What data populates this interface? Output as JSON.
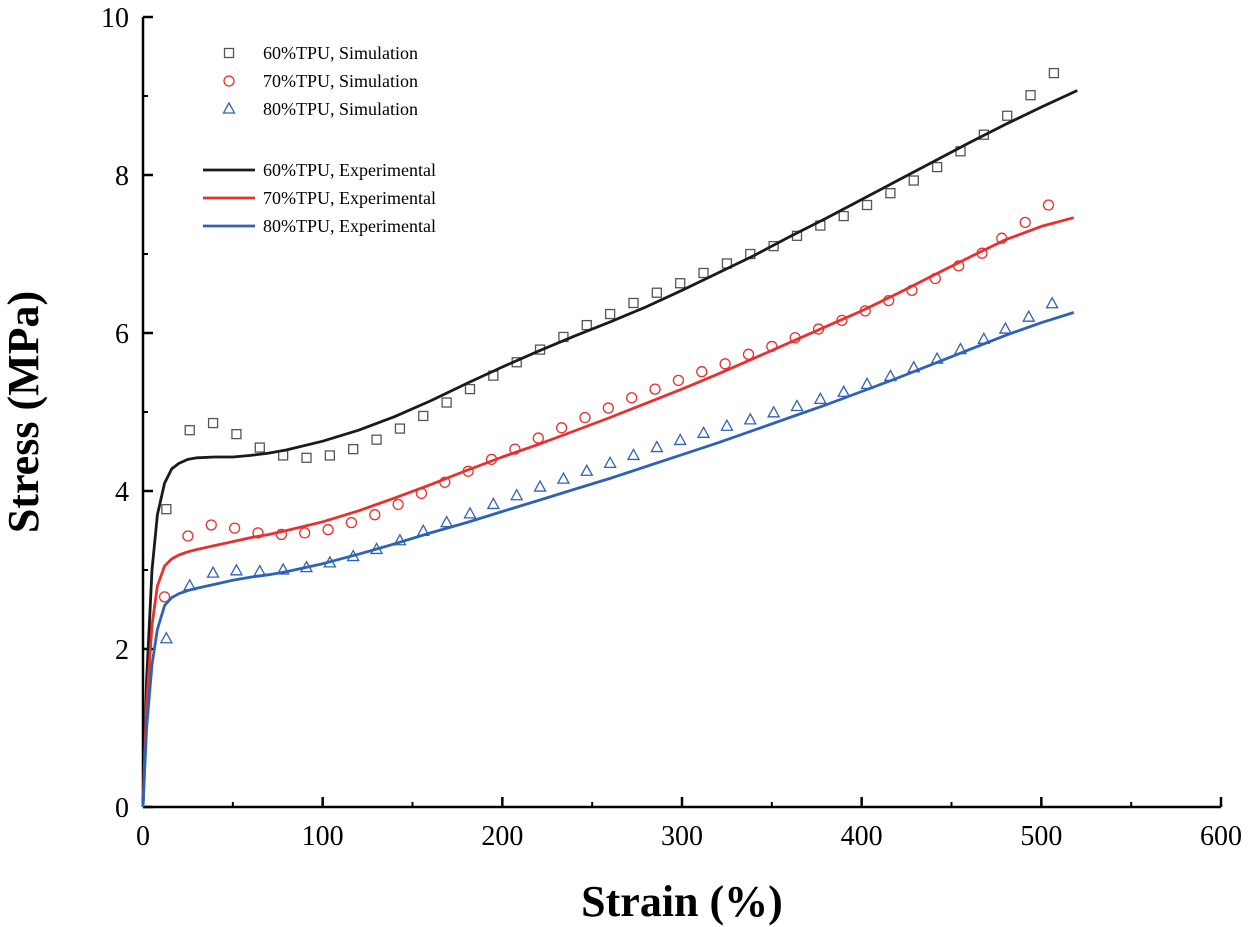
{
  "chart_data": {
    "type": "line",
    "title": "",
    "xlabel": "Strain (%)",
    "ylabel": "Stress (MPa)",
    "xlim": [
      0,
      600
    ],
    "ylim": [
      0,
      10
    ],
    "xticks": [
      0,
      100,
      200,
      300,
      400,
      500,
      600
    ],
    "yticks": [
      0,
      2,
      4,
      6,
      8,
      10
    ],
    "grid": false,
    "legend_position": "top-left",
    "series": [
      {
        "name": "60%TPU, Simulation",
        "kind": "scatter",
        "marker": "square",
        "color": "#555555",
        "x": [
          13,
          26,
          39,
          52,
          65,
          78,
          91,
          104,
          117,
          130,
          143,
          156,
          169,
          182,
          195,
          208,
          221,
          234,
          247,
          260,
          273,
          286,
          299,
          312,
          325,
          338,
          351,
          364,
          377,
          390,
          403,
          416,
          429,
          442,
          455,
          468,
          481,
          494,
          507
        ],
        "y": [
          3.77,
          4.77,
          4.86,
          4.72,
          4.55,
          4.45,
          4.42,
          4.45,
          4.53,
          4.65,
          4.79,
          4.95,
          5.12,
          5.29,
          5.46,
          5.63,
          5.79,
          5.95,
          6.1,
          6.24,
          6.38,
          6.51,
          6.63,
          6.76,
          6.88,
          7.0,
          7.1,
          7.23,
          7.36,
          7.48,
          7.62,
          7.77,
          7.93,
          8.1,
          8.3,
          8.51,
          8.75,
          9.01,
          9.29
        ]
      },
      {
        "name": "70%TPU, Simulation",
        "kind": "scatter",
        "marker": "circle",
        "color": "#e8302e",
        "x": [
          12,
          25,
          38,
          51,
          64,
          77,
          90,
          103,
          116,
          129,
          142,
          155,
          168,
          181,
          194,
          207,
          220,
          233,
          246,
          259,
          272,
          285,
          298,
          311,
          324,
          337,
          350,
          363,
          376,
          389,
          402,
          415,
          428,
          441,
          454,
          467,
          478,
          491,
          504
        ],
        "y": [
          2.66,
          3.43,
          3.57,
          3.53,
          3.47,
          3.45,
          3.47,
          3.51,
          3.6,
          3.7,
          3.83,
          3.97,
          4.11,
          4.25,
          4.4,
          4.53,
          4.67,
          4.8,
          4.93,
          5.05,
          5.18,
          5.29,
          5.4,
          5.51,
          5.61,
          5.73,
          5.83,
          5.94,
          6.05,
          6.16,
          6.28,
          6.41,
          6.54,
          6.69,
          6.85,
          7.01,
          7.2,
          7.4,
          7.62
        ]
      },
      {
        "name": "80%TPU, Simulation",
        "kind": "scatter",
        "marker": "triangle",
        "color": "#2e62b6",
        "x": [
          13,
          26,
          39,
          52,
          65,
          78,
          91,
          104,
          117,
          130,
          143,
          156,
          169,
          182,
          195,
          208,
          221,
          234,
          247,
          260,
          273,
          286,
          299,
          312,
          325,
          338,
          351,
          364,
          377,
          390,
          403,
          416,
          429,
          442,
          455,
          468,
          480,
          493,
          506
        ],
        "y": [
          2.13,
          2.8,
          2.96,
          2.99,
          2.98,
          3.0,
          3.03,
          3.09,
          3.17,
          3.26,
          3.37,
          3.49,
          3.6,
          3.71,
          3.83,
          3.94,
          4.05,
          4.15,
          4.25,
          4.35,
          4.45,
          4.55,
          4.64,
          4.73,
          4.82,
          4.9,
          4.99,
          5.07,
          5.16,
          5.25,
          5.35,
          5.45,
          5.56,
          5.67,
          5.79,
          5.92,
          6.05,
          6.2,
          6.37
        ]
      },
      {
        "name": "60%TPU, Experimental",
        "kind": "line",
        "color": "#1a1a1a",
        "x": [
          0,
          2,
          5,
          8,
          12,
          16,
          20,
          25,
          30,
          40,
          50,
          60,
          70,
          80,
          100,
          120,
          140,
          160,
          180,
          200,
          220,
          240,
          260,
          280,
          300,
          320,
          340,
          360,
          380,
          400,
          420,
          440,
          460,
          480,
          500,
          520
        ],
        "y": [
          0,
          1.6,
          3.0,
          3.7,
          4.1,
          4.28,
          4.35,
          4.4,
          4.42,
          4.43,
          4.43,
          4.45,
          4.48,
          4.52,
          4.63,
          4.77,
          4.94,
          5.14,
          5.36,
          5.57,
          5.77,
          5.96,
          6.14,
          6.33,
          6.54,
          6.76,
          6.98,
          7.22,
          7.45,
          7.69,
          7.93,
          8.17,
          8.41,
          8.64,
          8.86,
          9.07
        ]
      },
      {
        "name": "70%TPU, Experimental",
        "kind": "line",
        "color": "#e8302e",
        "x": [
          0,
          2,
          5,
          8,
          12,
          16,
          20,
          25,
          30,
          40,
          50,
          60,
          70,
          80,
          100,
          120,
          140,
          160,
          180,
          200,
          220,
          240,
          260,
          280,
          300,
          320,
          340,
          360,
          380,
          400,
          420,
          440,
          460,
          480,
          500,
          518
        ],
        "y": [
          0,
          1.3,
          2.3,
          2.8,
          3.05,
          3.14,
          3.19,
          3.23,
          3.26,
          3.31,
          3.36,
          3.41,
          3.45,
          3.5,
          3.61,
          3.75,
          3.91,
          4.08,
          4.26,
          4.43,
          4.59,
          4.76,
          4.93,
          5.11,
          5.29,
          5.48,
          5.68,
          5.88,
          6.08,
          6.28,
          6.5,
          6.73,
          6.96,
          7.18,
          7.35,
          7.46
        ]
      },
      {
        "name": "80%TPU, Experimental",
        "kind": "line",
        "color": "#2e62b6",
        "x": [
          0,
          2,
          5,
          8,
          12,
          16,
          20,
          25,
          30,
          40,
          50,
          60,
          70,
          80,
          100,
          120,
          140,
          160,
          180,
          200,
          220,
          240,
          260,
          280,
          300,
          320,
          340,
          360,
          380,
          400,
          420,
          440,
          460,
          480,
          500,
          518
        ],
        "y": [
          0,
          1.0,
          1.8,
          2.25,
          2.55,
          2.65,
          2.7,
          2.74,
          2.77,
          2.82,
          2.87,
          2.91,
          2.94,
          2.98,
          3.08,
          3.2,
          3.33,
          3.47,
          3.6,
          3.74,
          3.88,
          4.02,
          4.16,
          4.31,
          4.46,
          4.61,
          4.77,
          4.93,
          5.09,
          5.26,
          5.43,
          5.61,
          5.79,
          5.97,
          6.13,
          6.26
        ]
      }
    ]
  }
}
